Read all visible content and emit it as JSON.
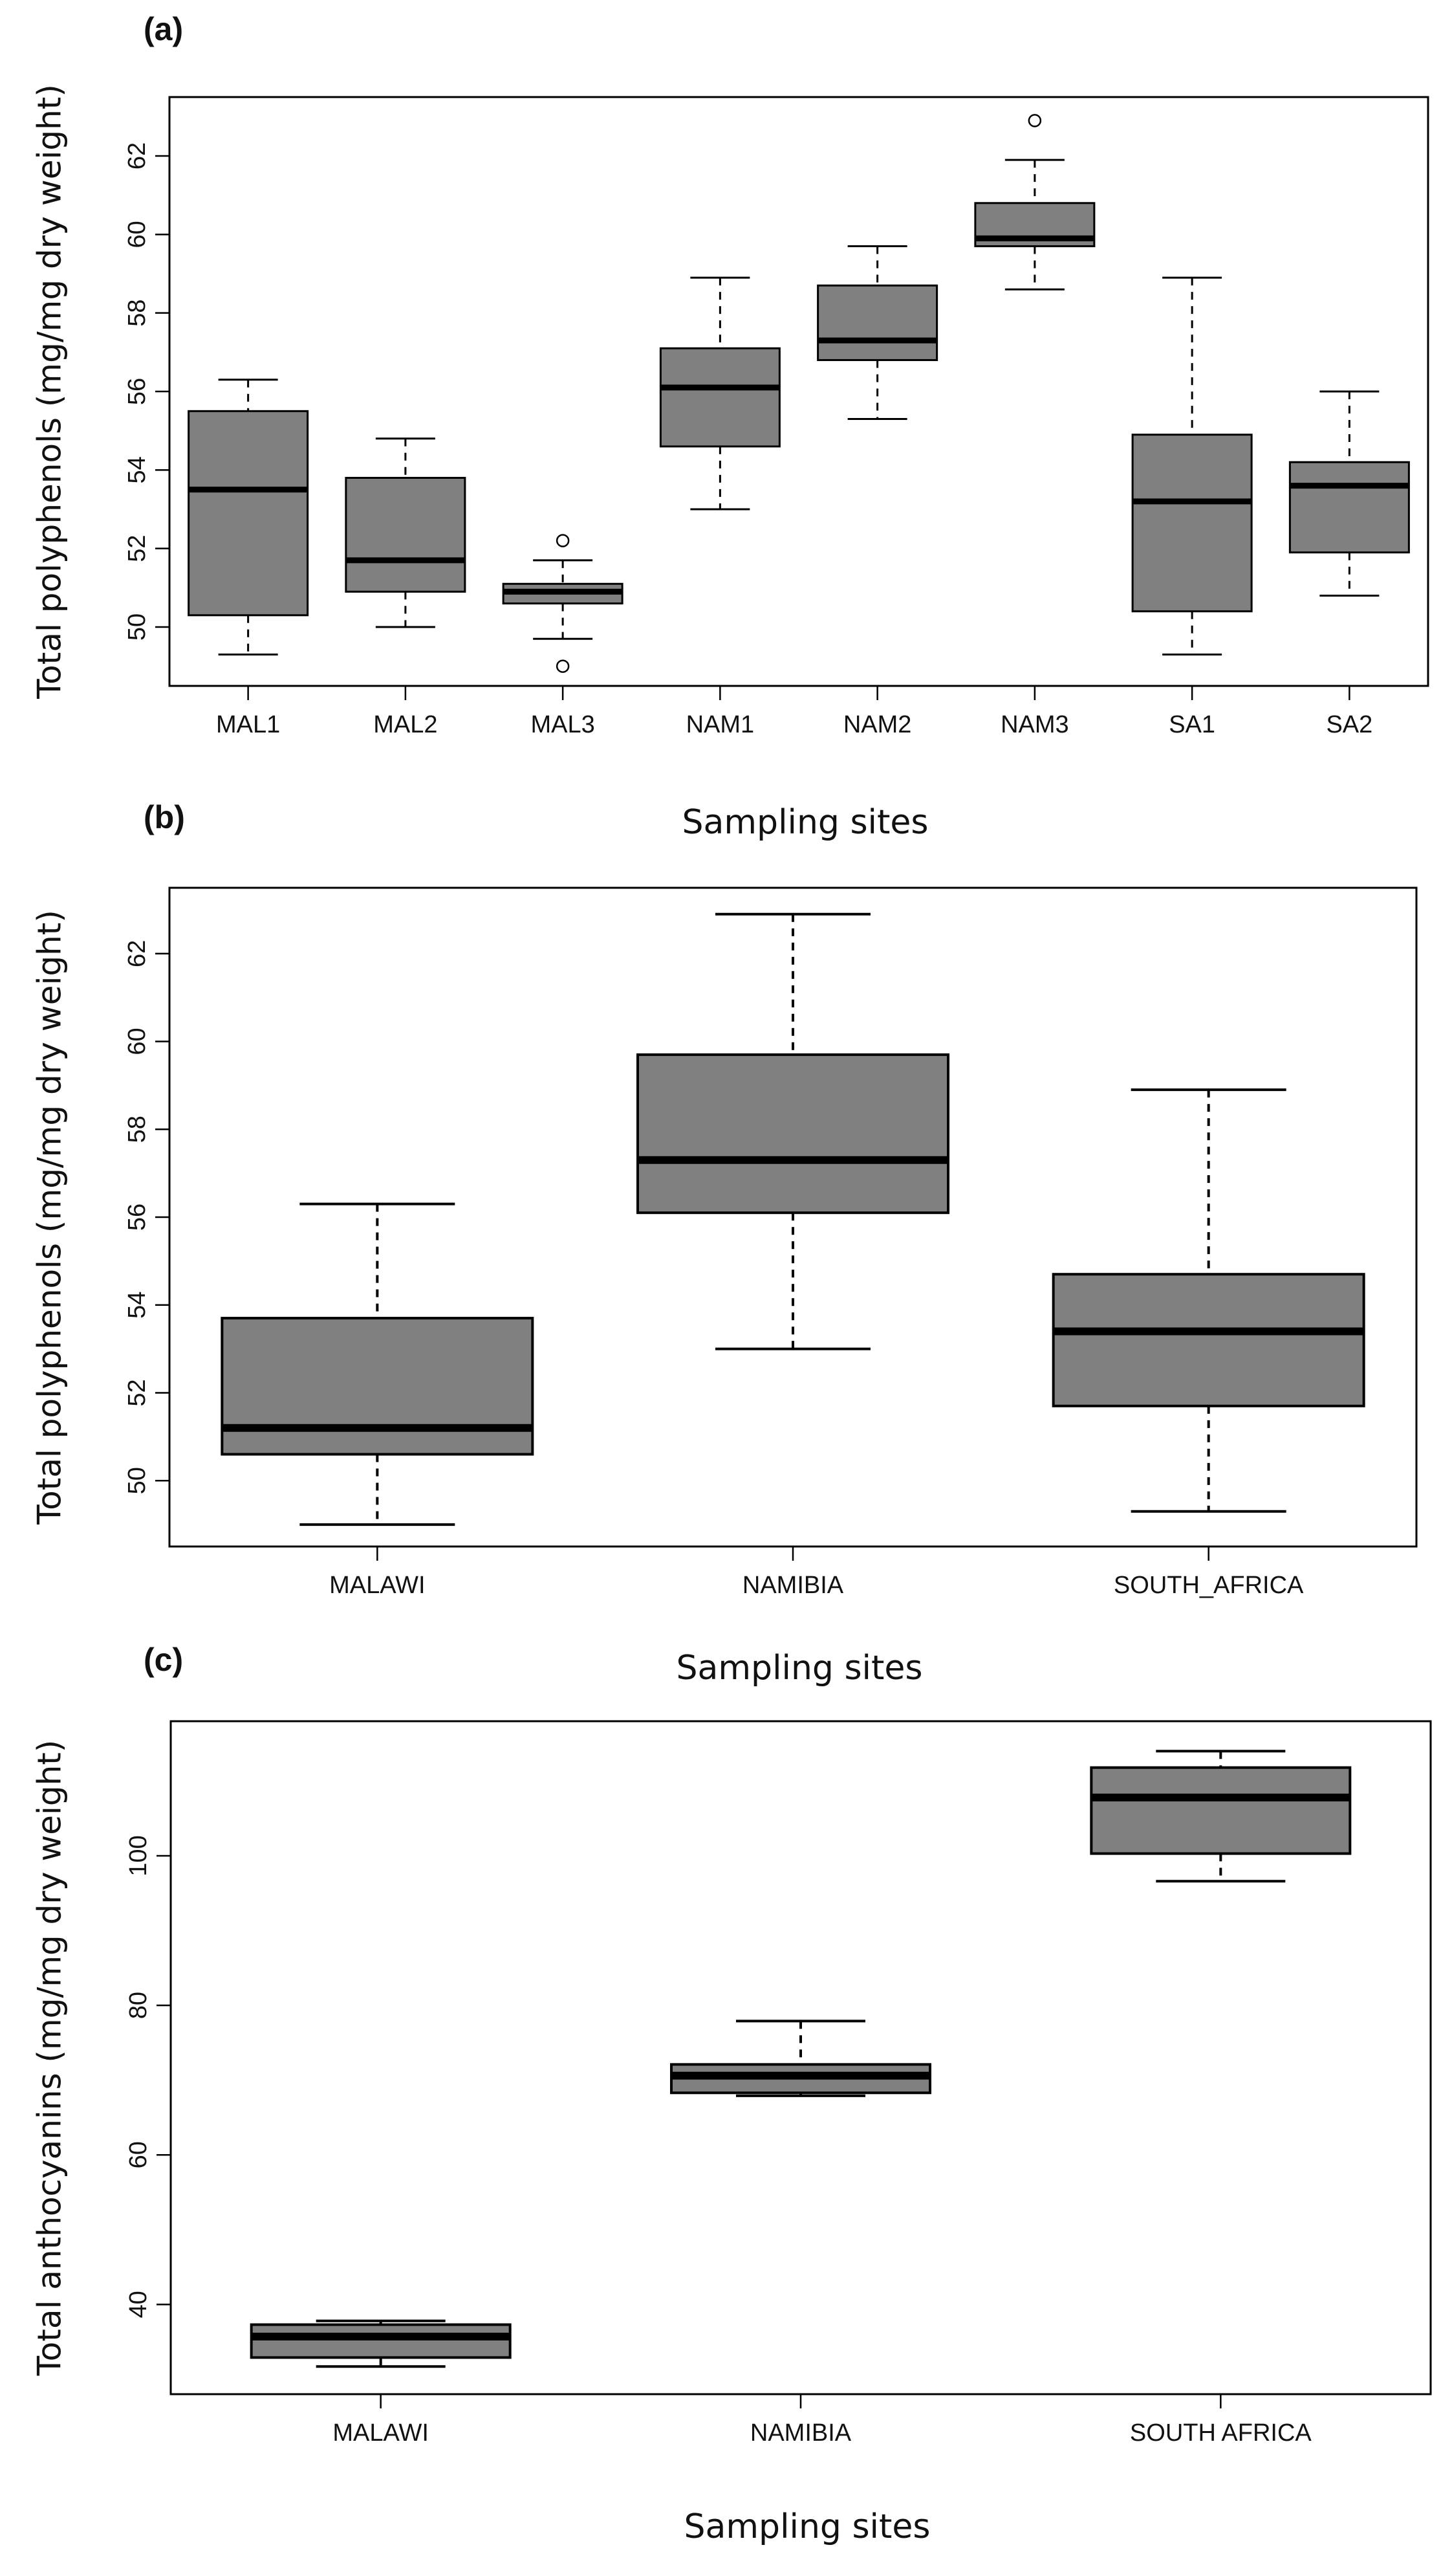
{
  "chart_data": [
    {
      "panel_label": "(a)",
      "type": "box",
      "ylabel": "Total polyphenols (mg/mg dry weight)",
      "xlabel": "Sampling sites",
      "ylim": [
        48.5,
        63.5
      ],
      "yticks": [
        50,
        52,
        54,
        56,
        58,
        60,
        62
      ],
      "categories": [
        "MAL1",
        "MAL2",
        "MAL3",
        "NAM1",
        "NAM2",
        "NAM3",
        "SA1",
        "SA2"
      ],
      "boxes": [
        {
          "min": 49.3,
          "q1": 50.3,
          "median": 53.5,
          "q3": 55.5,
          "max": 56.3,
          "outliers": []
        },
        {
          "min": 50.0,
          "q1": 50.9,
          "median": 51.7,
          "q3": 53.8,
          "max": 54.8,
          "outliers": []
        },
        {
          "min": 49.7,
          "q1": 50.6,
          "median": 50.9,
          "q3": 51.1,
          "max": 51.7,
          "outliers": [
            52.2,
            49.0
          ]
        },
        {
          "min": 53.0,
          "q1": 54.6,
          "median": 56.1,
          "q3": 57.1,
          "max": 58.9,
          "outliers": []
        },
        {
          "min": 55.3,
          "q1": 56.8,
          "median": 57.3,
          "q3": 58.7,
          "max": 59.7,
          "outliers": []
        },
        {
          "min": 58.6,
          "q1": 59.7,
          "median": 59.9,
          "q3": 60.8,
          "max": 61.9,
          "outliers": [
            62.9
          ]
        },
        {
          "min": 49.3,
          "q1": 50.4,
          "median": 53.2,
          "q3": 54.9,
          "max": 58.9,
          "outliers": []
        },
        {
          "min": 50.8,
          "q1": 51.9,
          "median": 53.6,
          "q3": 54.2,
          "max": 56.0,
          "outliers": []
        }
      ]
    },
    {
      "panel_label": "(b)",
      "type": "box",
      "ylabel": "Total polyphenols (mg/mg dry weight)",
      "xlabel": "Sampling sites",
      "ylim": [
        48.5,
        63.5
      ],
      "yticks": [
        50,
        52,
        54,
        56,
        58,
        60,
        62
      ],
      "categories": [
        "MALAWI",
        "NAMIBIA",
        "SOUTH_AFRICA"
      ],
      "boxes": [
        {
          "min": 49.0,
          "q1": 50.6,
          "median": 51.2,
          "q3": 53.7,
          "max": 56.3,
          "outliers": []
        },
        {
          "min": 53.0,
          "q1": 56.1,
          "median": 57.3,
          "q3": 59.7,
          "max": 62.9,
          "outliers": []
        },
        {
          "min": 49.3,
          "q1": 51.7,
          "median": 53.4,
          "q3": 54.7,
          "max": 58.9,
          "outliers": []
        }
      ]
    },
    {
      "panel_label": "(c)",
      "type": "box",
      "ylabel": "Total anthocyanins (mg/mg dry weight)",
      "xlabel": "Sampling sites",
      "ylim": [
        28,
        118
      ],
      "yticks": [
        40,
        60,
        80,
        100
      ],
      "categories": [
        "MALAWI",
        "NAMIBIA",
        "SOUTH AFRICA"
      ],
      "boxes": [
        {
          "min": 31.7,
          "q1": 32.9,
          "median": 35.7,
          "q3": 37.3,
          "max": 37.8,
          "outliers": []
        },
        {
          "min": 67.9,
          "q1": 68.3,
          "median": 70.6,
          "q3": 72.1,
          "max": 77.9,
          "outliers": []
        },
        {
          "min": 96.6,
          "q1": 100.3,
          "median": 107.8,
          "q3": 111.8,
          "max": 114.0,
          "outliers": []
        }
      ]
    }
  ]
}
